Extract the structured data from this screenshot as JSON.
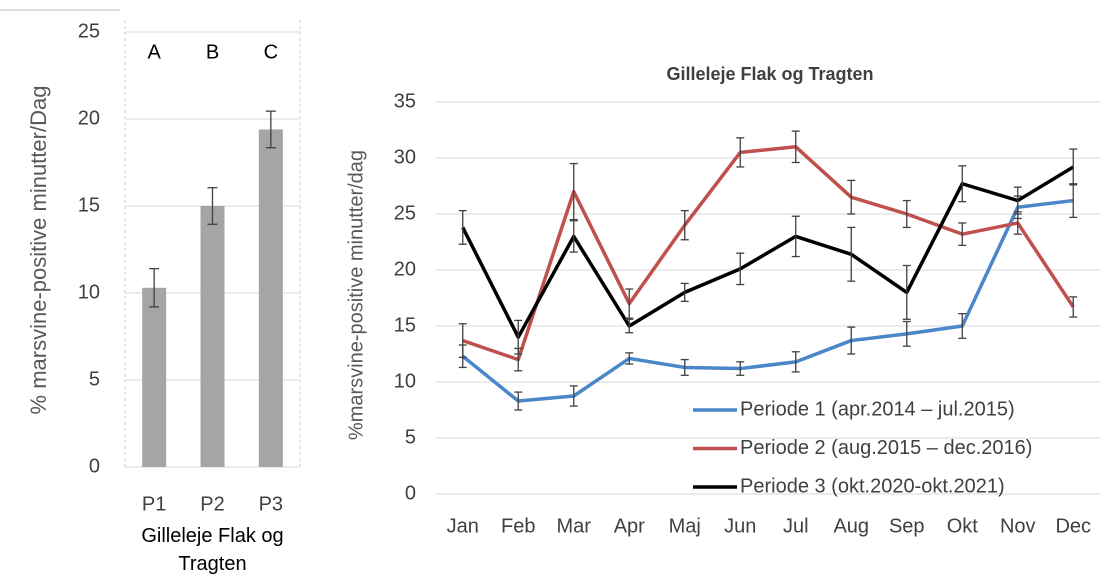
{
  "chart_data": [
    {
      "type": "bar",
      "ylabel": "% marsvine-positive minutter/Dag",
      "xlabel": "Gilleleje Flak og Tragten",
      "categories": [
        "P1",
        "P2",
        "P3"
      ],
      "values": [
        10.3,
        15.0,
        19.4
      ],
      "errors": [
        1.1,
        1.05,
        1.05
      ],
      "annotations": [
        "A",
        "B",
        "C"
      ],
      "color": "#a5a5a5",
      "ylim": [
        0,
        25
      ],
      "yticks": [
        0,
        5,
        10,
        15,
        20,
        25
      ],
      "grid": true
    },
    {
      "type": "line",
      "title": "Gilleleje Flak og Tragten",
      "ylabel": "%marsvine-positive minutter/dag",
      "categories": [
        "Jan",
        "Feb",
        "Mar",
        "Apr",
        "Maj",
        "Jun",
        "Jul",
        "Aug",
        "Sep",
        "Okt",
        "Nov",
        "Dec"
      ],
      "series": [
        {
          "name": "Periode 1 (apr.2014 – jul.2015)",
          "color": "#4a86c8",
          "values": [
            12.3,
            8.3,
            8.75,
            12.1,
            11.3,
            11.2,
            11.8,
            13.7,
            14.3,
            15.0,
            25.6,
            26.2
          ],
          "errors": [
            1.0,
            0.8,
            0.9,
            0.5,
            0.7,
            0.6,
            0.9,
            1.2,
            1.1,
            1.1,
            1.0,
            1.5
          ]
        },
        {
          "name": "Periode 2 (aug.2015 – dec.2016)",
          "color": "#c0504d",
          "values": [
            13.7,
            12.0,
            27.0,
            17.0,
            24.0,
            30.5,
            31.0,
            26.5,
            25.0,
            23.2,
            24.2,
            16.7
          ],
          "errors": [
            1.5,
            1.0,
            2.5,
            1.3,
            1.3,
            1.3,
            1.4,
            1.5,
            1.2,
            1.0,
            1.0,
            0.9
          ]
        },
        {
          "name": "Periode 3 (okt.2020-okt.2021)",
          "color": "#000000",
          "values": [
            23.8,
            14.0,
            23.0,
            15.0,
            18.0,
            20.1,
            23.0,
            21.4,
            18.0,
            27.7,
            26.2,
            29.2
          ],
          "errors": [
            1.5,
            1.5,
            1.4,
            0.6,
            0.8,
            1.4,
            1.8,
            2.4,
            2.4,
            1.6,
            1.2,
            1.6
          ]
        }
      ],
      "ylim": [
        0,
        35
      ],
      "yticks": [
        0,
        5,
        10,
        15,
        20,
        25,
        30,
        35
      ],
      "grid": true,
      "legend": "lower right"
    }
  ]
}
